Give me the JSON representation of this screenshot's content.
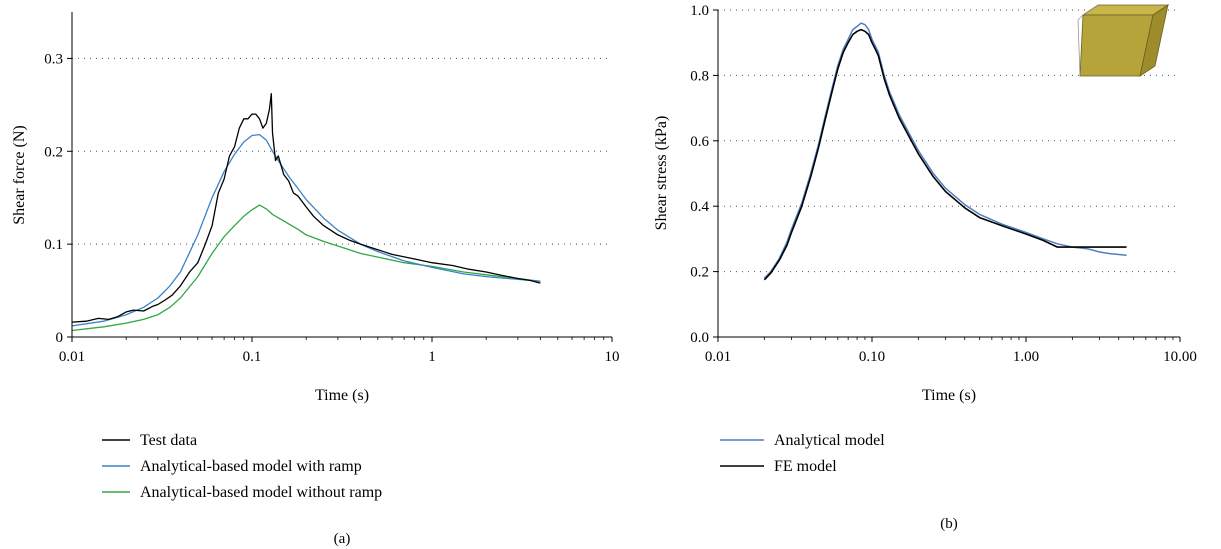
{
  "colors": {
    "test": "#000000",
    "ramp": "#3a83c8",
    "noramp": "#2fa845",
    "analytical": "#4f7fc1",
    "fe": "#000000",
    "box": "#b5a43a"
  },
  "chart_data": [
    {
      "type": "line",
      "panel_label": "(a)",
      "xlabel": "Time (s)",
      "ylabel": "Shear force (N)",
      "xscale": "log",
      "xlim": [
        0.01,
        10
      ],
      "ylim": [
        0,
        0.35
      ],
      "xticks": [
        {
          "v": 0.01,
          "label": "0.01"
        },
        {
          "v": 0.1,
          "label": "0.1"
        },
        {
          "v": 1,
          "label": "1"
        },
        {
          "v": 10,
          "label": "10"
        }
      ],
      "yticks": [
        {
          "v": 0,
          "label": "0"
        },
        {
          "v": 0.1,
          "label": "0.1"
        },
        {
          "v": 0.2,
          "label": "0.2"
        },
        {
          "v": 0.3,
          "label": "0.3"
        }
      ],
      "grid": "horizontal dotted",
      "legend_position": "below",
      "series": [
        {
          "name": "Test data",
          "color_key": "test",
          "x": [
            0.01,
            0.012,
            0.014,
            0.016,
            0.018,
            0.02,
            0.022,
            0.025,
            0.028,
            0.03,
            0.033,
            0.036,
            0.04,
            0.045,
            0.05,
            0.055,
            0.06,
            0.065,
            0.07,
            0.075,
            0.08,
            0.085,
            0.09,
            0.095,
            0.1,
            0.105,
            0.11,
            0.115,
            0.12,
            0.125,
            0.128,
            0.13,
            0.135,
            0.14,
            0.15,
            0.16,
            0.17,
            0.18,
            0.2,
            0.22,
            0.25,
            0.3,
            0.35,
            0.4,
            0.5,
            0.6,
            0.8,
            1,
            1.3,
            1.6,
            2,
            2.5,
            3,
            3.5,
            4
          ],
          "y": [
            0.016,
            0.017,
            0.02,
            0.019,
            0.022,
            0.027,
            0.029,
            0.028,
            0.033,
            0.035,
            0.04,
            0.045,
            0.055,
            0.07,
            0.08,
            0.1,
            0.12,
            0.155,
            0.17,
            0.195,
            0.205,
            0.225,
            0.235,
            0.235,
            0.24,
            0.24,
            0.235,
            0.225,
            0.23,
            0.245,
            0.262,
            0.22,
            0.19,
            0.195,
            0.175,
            0.168,
            0.155,
            0.152,
            0.14,
            0.13,
            0.12,
            0.11,
            0.104,
            0.1,
            0.094,
            0.089,
            0.084,
            0.08,
            0.077,
            0.073,
            0.07,
            0.066,
            0.063,
            0.061,
            0.058
          ]
        },
        {
          "name": "Analytical-based model with ramp",
          "color_key": "ramp",
          "x": [
            0.01,
            0.015,
            0.02,
            0.025,
            0.03,
            0.035,
            0.04,
            0.05,
            0.06,
            0.07,
            0.08,
            0.09,
            0.1,
            0.11,
            0.12,
            0.13,
            0.14,
            0.16,
            0.18,
            0.2,
            0.25,
            0.3,
            0.4,
            0.5,
            0.7,
            1,
            1.5,
            2,
            3,
            4
          ],
          "y": [
            0.012,
            0.017,
            0.024,
            0.032,
            0.042,
            0.055,
            0.07,
            0.11,
            0.15,
            0.178,
            0.197,
            0.21,
            0.217,
            0.218,
            0.212,
            0.2,
            0.19,
            0.173,
            0.16,
            0.148,
            0.128,
            0.115,
            0.1,
            0.092,
            0.082,
            0.075,
            0.068,
            0.065,
            0.062,
            0.06
          ]
        },
        {
          "name": "Analytical-based model without ramp",
          "color_key": "noramp",
          "x": [
            0.01,
            0.015,
            0.02,
            0.025,
            0.03,
            0.035,
            0.04,
            0.05,
            0.06,
            0.07,
            0.08,
            0.09,
            0.1,
            0.11,
            0.12,
            0.13,
            0.15,
            0.18,
            0.2,
            0.25,
            0.3,
            0.4,
            0.5,
            0.7,
            1,
            1.5,
            2,
            3,
            4
          ],
          "y": [
            0.007,
            0.011,
            0.015,
            0.019,
            0.024,
            0.032,
            0.042,
            0.065,
            0.09,
            0.108,
            0.12,
            0.13,
            0.137,
            0.142,
            0.138,
            0.132,
            0.125,
            0.116,
            0.11,
            0.103,
            0.098,
            0.09,
            0.086,
            0.08,
            0.076,
            0.07,
            0.067,
            0.063,
            0.06
          ]
        }
      ]
    },
    {
      "type": "line",
      "panel_label": "(b)",
      "xlabel": "Time (s)",
      "ylabel": "Shear stress (kPa)",
      "xscale": "log",
      "xlim": [
        0.01,
        10
      ],
      "ylim": [
        0,
        1
      ],
      "xticks": [
        {
          "v": 0.01,
          "label": "0.01"
        },
        {
          "v": 0.1,
          "label": "0.10"
        },
        {
          "v": 1,
          "label": "1.00"
        },
        {
          "v": 10,
          "label": "10.00"
        }
      ],
      "yticks": [
        {
          "v": 0,
          "label": "0.0"
        },
        {
          "v": 0.2,
          "label": "0.2"
        },
        {
          "v": 0.4,
          "label": "0.4"
        },
        {
          "v": 0.6,
          "label": "0.6"
        },
        {
          "v": 0.8,
          "label": "0.8"
        },
        {
          "v": 1,
          "label": "1.0"
        }
      ],
      "grid": "horizontal dotted",
      "legend_position": "below",
      "series": [
        {
          "name": "Analytical model",
          "color_key": "analytical",
          "x": [
            0.02,
            0.022,
            0.025,
            0.028,
            0.03,
            0.035,
            0.04,
            0.045,
            0.05,
            0.055,
            0.06,
            0.065,
            0.07,
            0.075,
            0.08,
            0.085,
            0.09,
            0.095,
            0.1,
            0.105,
            0.11,
            0.12,
            0.13,
            0.15,
            0.18,
            0.2,
            0.25,
            0.3,
            0.4,
            0.5,
            0.7,
            1,
            1.3,
            1.6,
            2,
            2.5,
            3,
            3.5,
            4.5
          ],
          "y": [
            0.18,
            0.2,
            0.24,
            0.29,
            0.33,
            0.41,
            0.5,
            0.59,
            0.68,
            0.76,
            0.83,
            0.88,
            0.91,
            0.94,
            0.95,
            0.96,
            0.955,
            0.94,
            0.91,
            0.89,
            0.87,
            0.8,
            0.75,
            0.68,
            0.61,
            0.57,
            0.5,
            0.455,
            0.405,
            0.375,
            0.345,
            0.32,
            0.3,
            0.285,
            0.275,
            0.27,
            0.26,
            0.255,
            0.25
          ]
        },
        {
          "name": "FE model",
          "color_key": "fe",
          "x": [
            0.02,
            0.022,
            0.025,
            0.028,
            0.03,
            0.035,
            0.04,
            0.045,
            0.05,
            0.055,
            0.06,
            0.065,
            0.07,
            0.075,
            0.08,
            0.085,
            0.09,
            0.095,
            0.1,
            0.105,
            0.11,
            0.12,
            0.13,
            0.15,
            0.18,
            0.2,
            0.25,
            0.3,
            0.4,
            0.5,
            0.7,
            1,
            1.3,
            1.6,
            2,
            2.5,
            3,
            3.5,
            4.5
          ],
          "y": [
            0.175,
            0.195,
            0.235,
            0.28,
            0.32,
            0.4,
            0.49,
            0.58,
            0.67,
            0.75,
            0.82,
            0.87,
            0.9,
            0.925,
            0.935,
            0.94,
            0.935,
            0.925,
            0.9,
            0.88,
            0.86,
            0.79,
            0.74,
            0.67,
            0.6,
            0.56,
            0.49,
            0.445,
            0.395,
            0.365,
            0.34,
            0.315,
            0.295,
            0.275,
            0.275,
            0.275,
            0.275,
            0.275,
            0.275
          ]
        }
      ]
    }
  ]
}
